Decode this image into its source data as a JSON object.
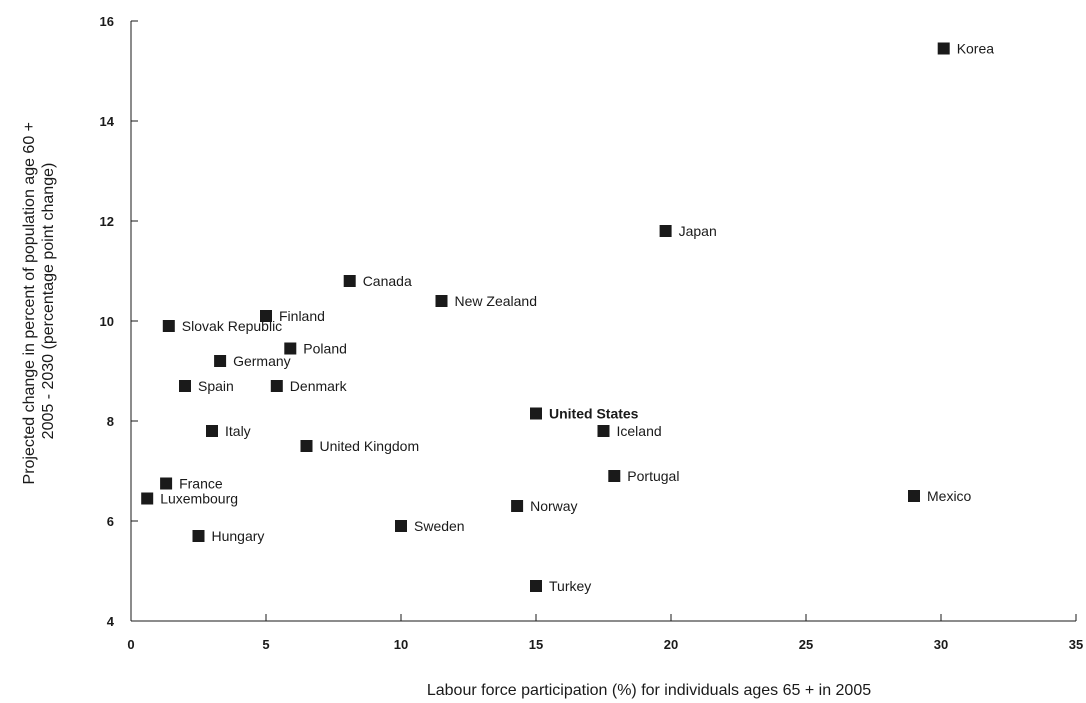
{
  "chart_data": {
    "type": "scatter",
    "title": "",
    "xlabel": "Labour force participation (%) for individuals ages 65 + in 2005",
    "ylabel_lines": [
      "Projected change in percent of population age 60 +",
      "2005 - 2030 (percentage point change)"
    ],
    "xlim": [
      0,
      35
    ],
    "ylim": [
      4,
      16
    ],
    "xticks": [
      "0",
      "5",
      "10",
      "15",
      "20",
      "25",
      "30",
      "35"
    ],
    "yticks": [
      "4",
      "6",
      "8",
      "10",
      "12",
      "14",
      "16"
    ],
    "grid": false,
    "marker_color": "#1a1a1a",
    "points": [
      {
        "label": "Korea",
        "x": 30.1,
        "y": 15.45
      },
      {
        "label": "Japan",
        "x": 19.8,
        "y": 11.8
      },
      {
        "label": "Canada",
        "x": 8.1,
        "y": 10.8
      },
      {
        "label": "New Zealand",
        "x": 11.5,
        "y": 10.4
      },
      {
        "label": "Finland",
        "x": 5.0,
        "y": 10.1
      },
      {
        "label": "Slovak Republic",
        "x": 1.4,
        "y": 9.9
      },
      {
        "label": "Poland",
        "x": 5.9,
        "y": 9.45
      },
      {
        "label": "Germany",
        "x": 3.3,
        "y": 9.2
      },
      {
        "label": "Spain",
        "x": 2.0,
        "y": 8.7
      },
      {
        "label": "Denmark",
        "x": 5.4,
        "y": 8.7
      },
      {
        "label": "United States",
        "x": 15.0,
        "y": 8.15,
        "highlight": true
      },
      {
        "label": "Iceland",
        "x": 17.5,
        "y": 7.8
      },
      {
        "label": "Italy",
        "x": 3.0,
        "y": 7.8
      },
      {
        "label": "United Kingdom",
        "x": 6.5,
        "y": 7.5
      },
      {
        "label": "Portugal",
        "x": 17.9,
        "y": 6.9
      },
      {
        "label": "France",
        "x": 1.3,
        "y": 6.75
      },
      {
        "label": "Mexico",
        "x": 29.0,
        "y": 6.5
      },
      {
        "label": "Luxembourg",
        "x": 0.6,
        "y": 6.45
      },
      {
        "label": "Norway",
        "x": 14.3,
        "y": 6.3
      },
      {
        "label": "Sweden",
        "x": 10.0,
        "y": 5.9
      },
      {
        "label": "Hungary",
        "x": 2.5,
        "y": 5.7
      },
      {
        "label": "Turkey",
        "x": 15.0,
        "y": 4.7
      }
    ]
  }
}
